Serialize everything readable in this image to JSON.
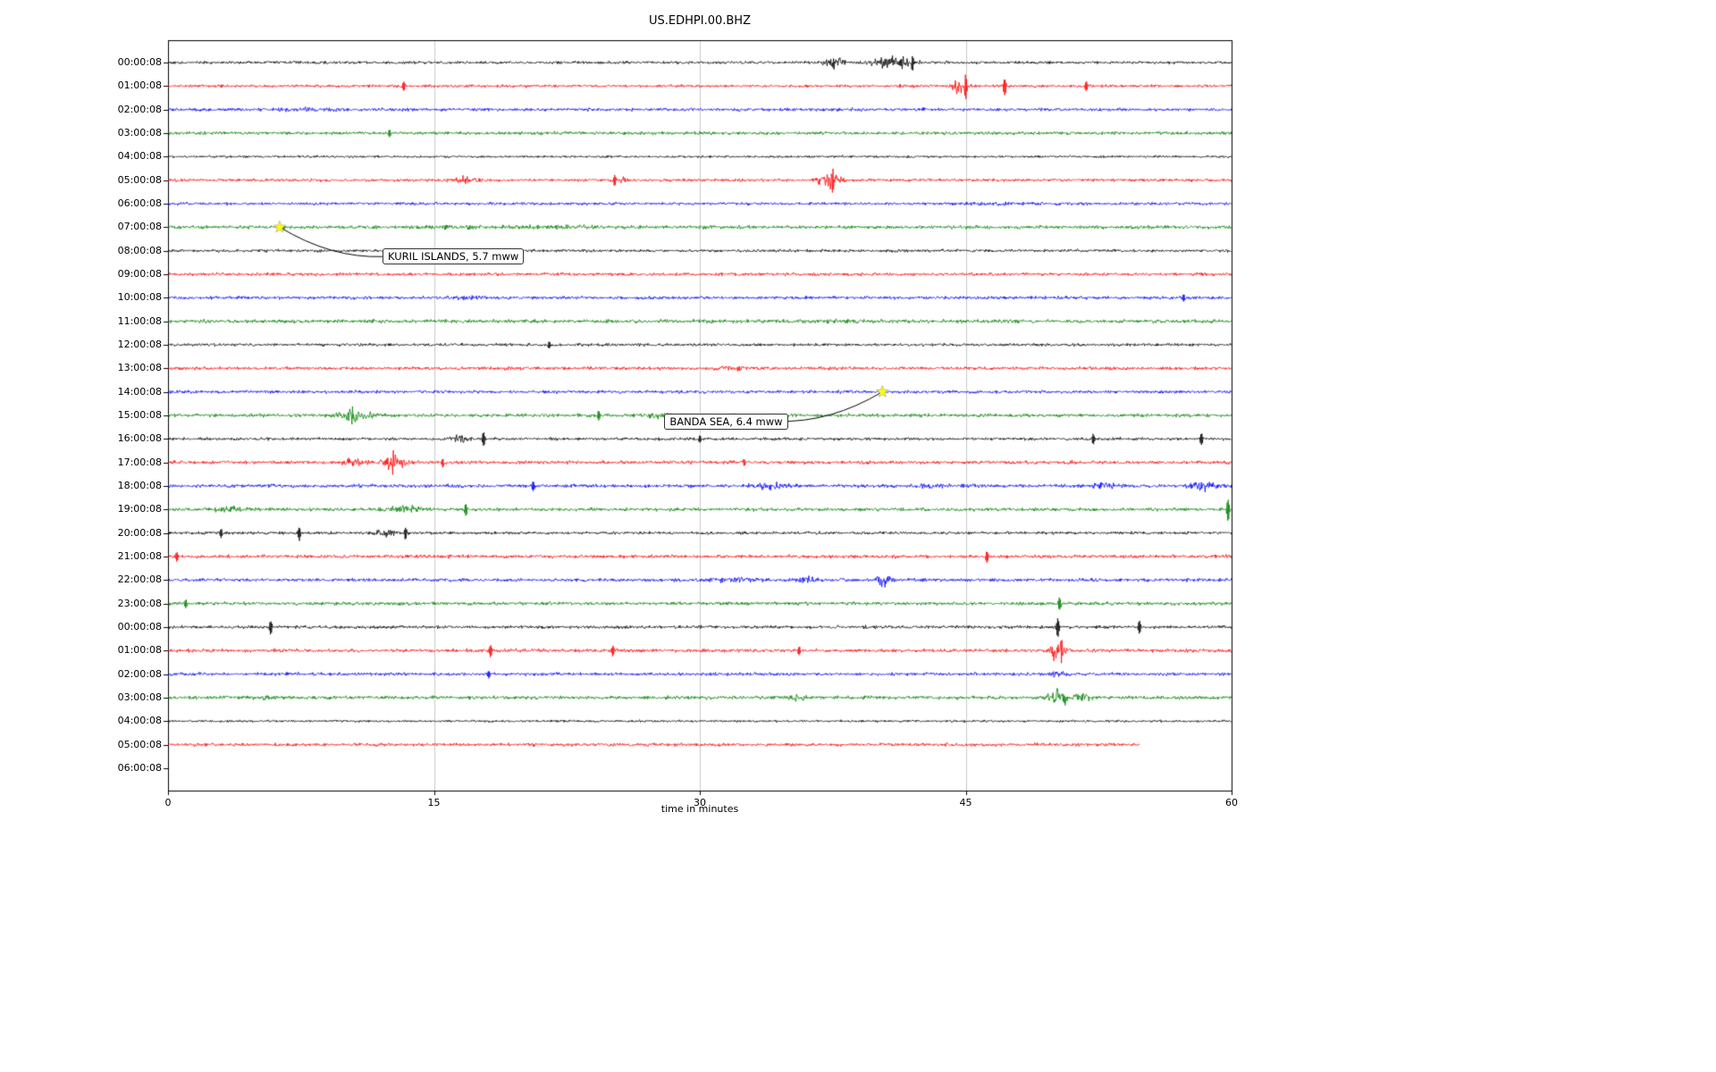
{
  "palette": {
    "black": "#000000",
    "red": "#ff0000",
    "blue": "#0000ff",
    "green": "#008000",
    "grid": "#c9c9c9",
    "axes": "#000000",
    "star": "#ffff00"
  },
  "chart_data": {
    "type": "line",
    "subtype": "seismogram-helicorder",
    "title": "US.EDHPI.00.BHZ",
    "xlabel": "time in minutes",
    "x_range": [
      0,
      60
    ],
    "xticks": [
      0,
      15,
      30,
      45,
      60
    ],
    "grid_minutes": [
      15,
      30,
      45
    ],
    "rows": [
      {
        "label": "00:00:08",
        "color": "black",
        "base": 2.2,
        "end": 60,
        "events": [
          {
            "type": "burst",
            "t": 37.5,
            "dur": 0.8,
            "amp": 8
          },
          {
            "type": "burst",
            "t": 40.8,
            "dur": 1.5,
            "amp": 9
          },
          {
            "type": "spike",
            "t": 42.0,
            "amp": 10
          }
        ]
      },
      {
        "label": "01:00:08",
        "color": "red",
        "base": 2.2,
        "end": 60,
        "events": [
          {
            "type": "spike",
            "t": 13.3,
            "amp": 7
          },
          {
            "type": "burst",
            "t": 44.6,
            "dur": 0.5,
            "amp": 13
          },
          {
            "type": "spike",
            "t": 45.0,
            "amp": 16
          },
          {
            "type": "spike",
            "t": 47.2,
            "amp": 12
          },
          {
            "type": "spike",
            "t": 51.8,
            "amp": 7
          }
        ]
      },
      {
        "label": "02:00:08",
        "color": "blue",
        "base": 2.4,
        "end": 60,
        "events": [
          {
            "type": "burst",
            "t": 8,
            "dur": 2,
            "amp": 1.5
          }
        ]
      },
      {
        "label": "03:00:08",
        "color": "green",
        "base": 2.4,
        "end": 60,
        "events": [
          {
            "type": "spike",
            "t": 12.5,
            "amp": 5
          }
        ]
      },
      {
        "label": "04:00:08",
        "color": "black",
        "base": 1.8,
        "end": 60,
        "events": []
      },
      {
        "label": "05:00:08",
        "color": "red",
        "base": 2.2,
        "end": 60,
        "events": [
          {
            "type": "burst",
            "t": 16.8,
            "dur": 1.2,
            "amp": 4
          },
          {
            "type": "spike",
            "t": 25.2,
            "amp": 7
          },
          {
            "type": "burst",
            "t": 25.8,
            "dur": 0.4,
            "amp": 4
          },
          {
            "type": "burst",
            "t": 37.3,
            "dur": 0.9,
            "amp": 12
          },
          {
            "type": "spike",
            "t": 37.5,
            "amp": 17
          }
        ]
      },
      {
        "label": "06:00:08",
        "color": "blue",
        "base": 2.2,
        "end": 60,
        "events": [
          {
            "type": "burst",
            "t": 46.5,
            "dur": 1.5,
            "amp": 1.5
          }
        ]
      },
      {
        "label": "07:00:08",
        "color": "green",
        "base": 2.6,
        "end": 60,
        "events": [
          {
            "type": "burst",
            "t": 16,
            "dur": 3,
            "amp": 1.2
          },
          {
            "type": "burst",
            "t": 22,
            "dur": 4,
            "amp": 1.2
          }
        ]
      },
      {
        "label": "08:00:08",
        "color": "black",
        "base": 2.2,
        "end": 60,
        "events": []
      },
      {
        "label": "09:00:08",
        "color": "red",
        "base": 2.4,
        "end": 60,
        "events": []
      },
      {
        "label": "10:00:08",
        "color": "blue",
        "base": 2.4,
        "end": 60,
        "events": [
          {
            "type": "burst",
            "t": 17,
            "dur": 1,
            "amp": 2.5
          },
          {
            "type": "spike",
            "t": 57.3,
            "amp": 5
          }
        ]
      },
      {
        "label": "11:00:08",
        "color": "green",
        "base": 2.8,
        "end": 60,
        "events": [
          {
            "type": "burst",
            "t": 38,
            "dur": 2,
            "amp": 1.5
          }
        ]
      },
      {
        "label": "12:00:08",
        "color": "black",
        "base": 2.2,
        "end": 60,
        "events": [
          {
            "type": "spike",
            "t": 21.5,
            "amp": 5
          }
        ]
      },
      {
        "label": "13:00:08",
        "color": "red",
        "base": 2.4,
        "end": 60,
        "events": [
          {
            "type": "burst",
            "t": 32,
            "dur": 2,
            "amp": 1.5
          }
        ]
      },
      {
        "label": "14:00:08",
        "color": "blue",
        "base": 2.4,
        "end": 60,
        "events": []
      },
      {
        "label": "15:00:08",
        "color": "green",
        "base": 2.6,
        "end": 60,
        "events": [
          {
            "type": "burst",
            "t": 10.5,
            "dur": 1.2,
            "amp": 9
          },
          {
            "type": "spike",
            "t": 10.4,
            "amp": 13
          },
          {
            "type": "spike",
            "t": 24.3,
            "amp": 7
          },
          {
            "type": "burst",
            "t": 27.5,
            "dur": 1,
            "amp": 3.5
          }
        ]
      },
      {
        "label": "16:00:08",
        "color": "black",
        "base": 2.2,
        "end": 60,
        "events": [
          {
            "type": "burst",
            "t": 16.5,
            "dur": 1,
            "amp": 4
          },
          {
            "type": "spike",
            "t": 17.8,
            "amp": 9
          },
          {
            "type": "spike",
            "t": 30,
            "amp": 5
          },
          {
            "type": "spike",
            "t": 52.2,
            "amp": 7
          },
          {
            "type": "spike",
            "t": 58.3,
            "amp": 8
          }
        ]
      },
      {
        "label": "17:00:08",
        "color": "red",
        "base": 2.6,
        "end": 60,
        "events": [
          {
            "type": "burst",
            "t": 10.5,
            "dur": 0.8,
            "amp": 5
          },
          {
            "type": "burst",
            "t": 12.8,
            "dur": 0.9,
            "amp": 11
          },
          {
            "type": "spike",
            "t": 12.7,
            "amp": 16
          },
          {
            "type": "spike",
            "t": 15.5,
            "amp": 6
          },
          {
            "type": "spike",
            "t": 32.5,
            "amp": 5
          }
        ]
      },
      {
        "label": "18:00:08",
        "color": "blue",
        "base": 2.6,
        "end": 60,
        "events": [
          {
            "type": "spike",
            "t": 20.6,
            "amp": 7
          },
          {
            "type": "burst",
            "t": 34,
            "dur": 1.5,
            "amp": 3
          },
          {
            "type": "burst",
            "t": 43,
            "dur": 1.5,
            "amp": 2.5
          },
          {
            "type": "burst",
            "t": 52.8,
            "dur": 1,
            "amp": 4
          },
          {
            "type": "burst",
            "t": 58.5,
            "dur": 1,
            "amp": 7
          }
        ]
      },
      {
        "label": "19:00:08",
        "color": "green",
        "base": 2.6,
        "end": 60,
        "events": [
          {
            "type": "burst",
            "t": 3.5,
            "dur": 1.5,
            "amp": 3
          },
          {
            "type": "burst",
            "t": 13.5,
            "dur": 1.5,
            "amp": 4
          },
          {
            "type": "spike",
            "t": 16.8,
            "amp": 8
          },
          {
            "type": "spike",
            "t": 59.8,
            "amp": 14
          }
        ]
      },
      {
        "label": "20:00:08",
        "color": "black",
        "base": 2.2,
        "end": 60,
        "events": [
          {
            "type": "spike",
            "t": 3,
            "amp": 6
          },
          {
            "type": "spike",
            "t": 7.4,
            "amp": 9
          },
          {
            "type": "burst",
            "t": 12.3,
            "dur": 1,
            "amp": 5
          },
          {
            "type": "spike",
            "t": 13.4,
            "amp": 8
          }
        ]
      },
      {
        "label": "21:00:08",
        "color": "red",
        "base": 2.6,
        "end": 60,
        "events": [
          {
            "type": "spike",
            "t": 0.5,
            "amp": 6
          },
          {
            "type": "spike",
            "t": 46.2,
            "amp": 8
          }
        ]
      },
      {
        "label": "22:00:08",
        "color": "blue",
        "base": 2.6,
        "end": 60,
        "events": [
          {
            "type": "burst",
            "t": 32,
            "dur": 1.5,
            "amp": 3
          },
          {
            "type": "burst",
            "t": 36,
            "dur": 1,
            "amp": 4
          },
          {
            "type": "burst",
            "t": 40.3,
            "dur": 0.6,
            "amp": 9
          }
        ]
      },
      {
        "label": "23:00:08",
        "color": "green",
        "base": 2.6,
        "end": 60,
        "events": [
          {
            "type": "spike",
            "t": 1,
            "amp": 6
          },
          {
            "type": "spike",
            "t": 50.3,
            "amp": 9
          }
        ]
      },
      {
        "label": "00:00:08",
        "color": "black",
        "base": 2.4,
        "end": 60,
        "events": [
          {
            "type": "spike",
            "t": 5.8,
            "amp": 9
          },
          {
            "type": "spike",
            "t": 50.2,
            "amp": 13
          },
          {
            "type": "spike",
            "t": 54.8,
            "amp": 9
          }
        ]
      },
      {
        "label": "01:00:08",
        "color": "red",
        "base": 2.6,
        "end": 60,
        "events": [
          {
            "type": "spike",
            "t": 18.2,
            "amp": 8
          },
          {
            "type": "spike",
            "t": 25.1,
            "amp": 7
          },
          {
            "type": "spike",
            "t": 35.6,
            "amp": 6
          },
          {
            "type": "burst",
            "t": 50.2,
            "dur": 0.5,
            "amp": 15
          },
          {
            "type": "spike",
            "t": 50.4,
            "amp": 18
          }
        ]
      },
      {
        "label": "02:00:08",
        "color": "blue",
        "base": 2.4,
        "end": 60,
        "events": [
          {
            "type": "spike",
            "t": 18.1,
            "amp": 5
          },
          {
            "type": "burst",
            "t": 50.3,
            "dur": 0.6,
            "amp": 4
          }
        ]
      },
      {
        "label": "03:00:08",
        "color": "green",
        "base": 2.6,
        "end": 60,
        "events": [
          {
            "type": "burst",
            "t": 5.5,
            "dur": 1.5,
            "amp": 1.5
          },
          {
            "type": "burst",
            "t": 35.5,
            "dur": 1,
            "amp": 3.5
          },
          {
            "type": "burst",
            "t": 50.2,
            "dur": 0.8,
            "amp": 13
          },
          {
            "type": "burst",
            "t": 51.5,
            "dur": 0.6,
            "amp": 7
          }
        ]
      },
      {
        "label": "04:00:08",
        "color": "black",
        "base": 1.8,
        "end": 60,
        "events": []
      },
      {
        "label": "05:00:08",
        "color": "red",
        "base": 2.4,
        "end": 54.8,
        "events": []
      },
      {
        "label": "06:00:08",
        "color": "black",
        "base": 0,
        "end": 0,
        "events": []
      }
    ],
    "annotations": [
      {
        "text": "KURIL ISLANDS, 5.7 mww",
        "star": {
          "minute": 6.3,
          "row": 7
        },
        "box": {
          "minute": 12.1,
          "row": 8.25
        },
        "connector_end": {
          "minute": 12.1,
          "row": 8.25
        }
      },
      {
        "text": "BANDA SEA, 6.4 mww",
        "star": {
          "minute": 40.3,
          "row": 14
        },
        "box": {
          "minute": 28.0,
          "row": 15.25
        },
        "connector_end": {
          "minute": 34.4,
          "row": 15.25
        }
      }
    ]
  }
}
